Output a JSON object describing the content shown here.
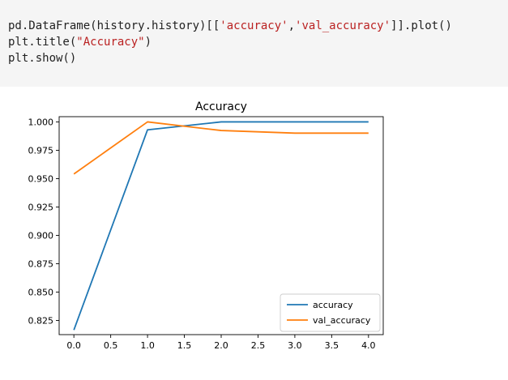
{
  "code_cell": {
    "line1_prefix": "pd.DataFrame(history.history)[[",
    "line1_str1": "'accuracy'",
    "line1_sep": ",",
    "line1_str2": "'val_accuracy'",
    "line1_suffix": "]].plot()",
    "line2_prefix": "plt.title(",
    "line2_str": "\"Accuracy\"",
    "line2_suffix": ")",
    "line3": "plt.show()"
  },
  "chart_data": {
    "type": "line",
    "title": "Accuracy",
    "xlabel": "",
    "ylabel": "",
    "x": [
      0,
      1,
      2,
      3,
      4
    ],
    "xlim": [
      -0.2,
      4.2
    ],
    "ylim": [
      0.8125,
      1.0046
    ],
    "xticks": [
      "0.0",
      "0.5",
      "1.0",
      "1.5",
      "2.0",
      "2.5",
      "3.0",
      "3.5",
      "4.0"
    ],
    "yticks": [
      "0.825",
      "0.850",
      "0.875",
      "0.900",
      "0.925",
      "0.950",
      "0.975",
      "1.000"
    ],
    "grid": false,
    "legend_position": "lower-right",
    "series": [
      {
        "name": "accuracy",
        "color": "#1f77b4",
        "values": [
          0.8166,
          0.993,
          1.0,
          1.0,
          1.0
        ]
      },
      {
        "name": "val_accuracy",
        "color": "#ff7f0e",
        "values": [
          0.9541,
          1.0,
          0.9924,
          0.9901,
          0.9901
        ]
      }
    ]
  }
}
